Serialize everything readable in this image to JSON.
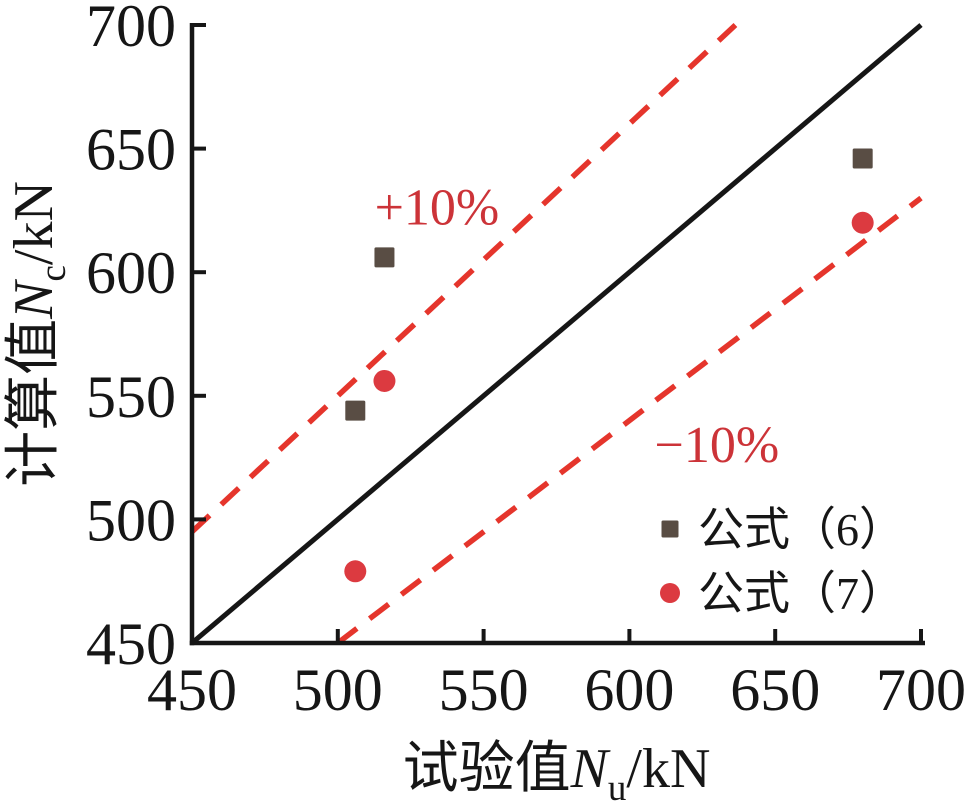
{
  "chart_data": {
    "type": "scatter",
    "title": "",
    "xlabel": {
      "prefix": "试验值",
      "symbol": "N",
      "subscript": "u",
      "suffix": "/kN"
    },
    "ylabel": {
      "prefix": "计算值",
      "symbol": "N",
      "subscript": "c",
      "suffix": "/kN"
    },
    "xlim": [
      450,
      700
    ],
    "ylim": [
      450,
      700
    ],
    "xticks": [
      450,
      500,
      550,
      600,
      650,
      700
    ],
    "yticks": [
      450,
      500,
      550,
      600,
      650,
      700
    ],
    "grid": false,
    "axis_color": "#161616",
    "background_color": "#ffffff",
    "series": [
      {
        "name": "公式（6）",
        "marker": "square",
        "color": "#594d44",
        "points": [
          [
            506,
            544
          ],
          [
            516,
            606
          ],
          [
            680,
            646
          ]
        ]
      },
      {
        "name": "公式（7）",
        "marker": "circle",
        "color": "#dc3a40",
        "points": [
          [
            506,
            479
          ],
          [
            516,
            556
          ],
          [
            680,
            620
          ]
        ]
      }
    ],
    "reference_lines": [
      {
        "name": "identity-line",
        "slope": 1.0,
        "style": "solid",
        "color": "#161616"
      },
      {
        "name": "plus-10-percent-line",
        "slope": 1.1,
        "style": "dashed",
        "color": "#e5352c"
      },
      {
        "name": "minus-10-percent-line",
        "slope": 0.9,
        "style": "dashed",
        "color": "#e5352c"
      }
    ],
    "annotations": [
      {
        "name": "plus-10-label",
        "text": "+10%",
        "x": 534,
        "y": 627,
        "color": "#cc3338"
      },
      {
        "name": "minus-10-label",
        "text": "−10%",
        "x": 630,
        "y": 531,
        "color": "#cc3338"
      }
    ],
    "legend": {
      "position": "lower-right",
      "items": [
        {
          "label": "公式（6）",
          "marker": "square",
          "color": "#594d44"
        },
        {
          "label": "公式（7）",
          "marker": "circle",
          "color": "#dc3a40"
        }
      ]
    }
  }
}
